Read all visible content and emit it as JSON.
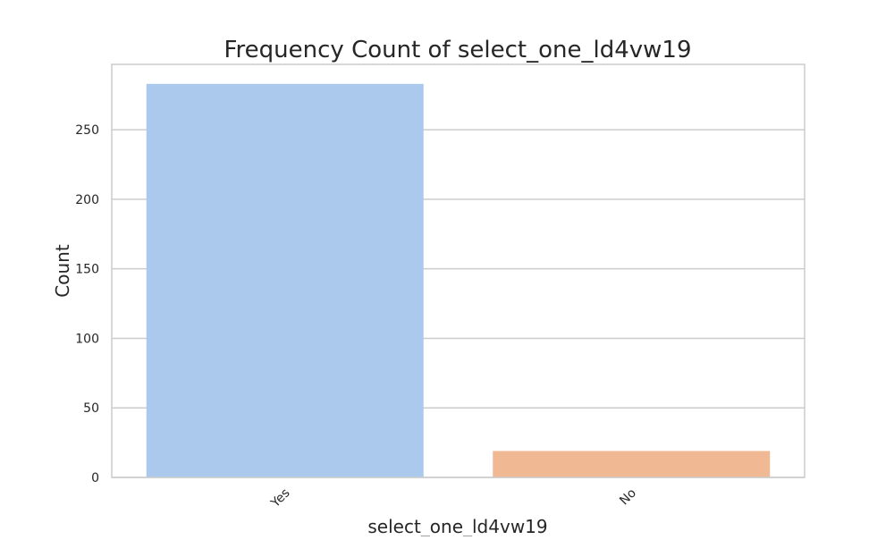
{
  "chart_data": {
    "type": "bar",
    "title": "Frequency Count of select_one_ld4vw19",
    "xlabel": "select_one_ld4vw19",
    "ylabel": "Count",
    "categories": [
      "Yes",
      "No"
    ],
    "values": [
      283,
      19
    ],
    "ylim": [
      0,
      297
    ],
    "yticks": [
      0,
      50,
      100,
      150,
      200,
      250
    ],
    "ytick_labels": [
      "0",
      "50",
      "100",
      "150",
      "200",
      "250"
    ],
    "xtick_rotation": "45 degrees",
    "grid": "horizontal",
    "colors": [
      "#abc9ec",
      "#f0b893"
    ],
    "grid_color": "#cccccc",
    "frame_color": "#cccccc"
  }
}
